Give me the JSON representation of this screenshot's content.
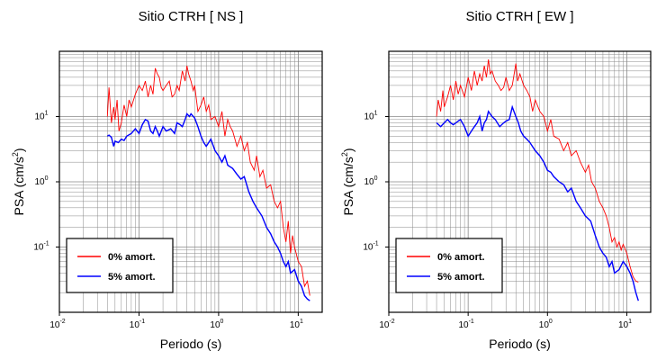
{
  "chart_data": [
    {
      "type": "line",
      "title": "Sitio CTRH [ NS ]",
      "xlabel": "Periodo (s)",
      "ylabel_main": "PSA (cm/s",
      "ylabel_sup": "2",
      "ylabel_tail": ")",
      "x_scale": "log",
      "y_scale": "log",
      "xlim": [
        0.01,
        20
      ],
      "ylim": [
        0.01,
        100
      ],
      "grid": true,
      "legend_position": "bottom-left",
      "x_ticks": [
        {
          "base": "10",
          "exp": "-2",
          "v": 0.01
        },
        {
          "base": "10",
          "exp": "-1",
          "v": 0.1
        },
        {
          "base": "10",
          "exp": "0",
          "v": 1
        },
        {
          "base": "10",
          "exp": "1",
          "v": 10
        }
      ],
      "y_ticks": [
        {
          "base": "10",
          "exp": "-1",
          "v": 0.1
        },
        {
          "base": "10",
          "exp": "0",
          "v": 1
        },
        {
          "base": "10",
          "exp": "1",
          "v": 10
        }
      ],
      "series": [
        {
          "name": "0% amort.",
          "color": "#ff0000",
          "x": [
            0.04,
            0.042,
            0.045,
            0.048,
            0.05,
            0.053,
            0.056,
            0.06,
            0.065,
            0.07,
            0.075,
            0.08,
            0.09,
            0.1,
            0.11,
            0.12,
            0.13,
            0.14,
            0.15,
            0.16,
            0.17,
            0.18,
            0.19,
            0.2,
            0.22,
            0.24,
            0.26,
            0.28,
            0.3,
            0.32,
            0.35,
            0.38,
            0.4,
            0.42,
            0.45,
            0.48,
            0.5,
            0.55,
            0.6,
            0.65,
            0.7,
            0.75,
            0.8,
            0.9,
            1.0,
            1.1,
            1.2,
            1.3,
            1.4,
            1.5,
            1.7,
            1.9,
            2.1,
            2.3,
            2.5,
            2.8,
            3.0,
            3.3,
            3.6,
            4.0,
            4.5,
            5.0,
            5.5,
            6.0,
            6.5,
            7.0,
            7.5,
            8.0,
            8.5,
            9.0,
            10.0,
            11.0,
            12.0,
            13.0,
            14.0
          ],
          "y": [
            10,
            28,
            8,
            14,
            9,
            18,
            6,
            8,
            15,
            10,
            18,
            14,
            22,
            30,
            25,
            35,
            20,
            30,
            22,
            55,
            45,
            40,
            28,
            25,
            30,
            35,
            20,
            22,
            30,
            25,
            50,
            35,
            60,
            45,
            35,
            25,
            30,
            12,
            15,
            20,
            12,
            15,
            9,
            10,
            7,
            12,
            5,
            9,
            7,
            6,
            3.5,
            5,
            3,
            4,
            2,
            1.5,
            2.5,
            1.2,
            1.5,
            0.8,
            0.9,
            0.5,
            0.4,
            0.5,
            0.2,
            0.12,
            0.25,
            0.08,
            0.15,
            0.1,
            0.06,
            0.05,
            0.025,
            0.03,
            0.018
          ]
        },
        {
          "name": "5% amort.",
          "color": "#0000ff",
          "x": [
            0.04,
            0.042,
            0.045,
            0.048,
            0.05,
            0.055,
            0.06,
            0.065,
            0.07,
            0.08,
            0.09,
            0.1,
            0.11,
            0.12,
            0.13,
            0.14,
            0.15,
            0.16,
            0.17,
            0.18,
            0.2,
            0.22,
            0.25,
            0.28,
            0.3,
            0.33,
            0.35,
            0.38,
            0.4,
            0.43,
            0.45,
            0.5,
            0.55,
            0.6,
            0.65,
            0.7,
            0.8,
            0.9,
            1.0,
            1.1,
            1.2,
            1.3,
            1.5,
            1.7,
            1.9,
            2.1,
            2.4,
            2.7,
            3.0,
            3.5,
            4.0,
            4.5,
            5.0,
            5.5,
            6.0,
            6.5,
            7.0,
            7.5,
            8.0,
            9.0,
            10.0,
            11.0,
            12.0,
            13.0,
            14.0
          ],
          "y": [
            5,
            5.2,
            4.8,
            3.5,
            4.2,
            4,
            4.5,
            4.3,
            5,
            5.5,
            6.5,
            5.5,
            7.5,
            9,
            8.5,
            6,
            5.5,
            7,
            6,
            5,
            7,
            6,
            6.5,
            5.5,
            8,
            7.5,
            7,
            9,
            11,
            10,
            11,
            9.5,
            7,
            5,
            4,
            3.5,
            4.5,
            3,
            2.5,
            2,
            2.5,
            1.8,
            1.6,
            1.3,
            1.1,
            1.2,
            0.7,
            0.5,
            0.4,
            0.3,
            0.2,
            0.16,
            0.12,
            0.1,
            0.08,
            0.06,
            0.05,
            0.06,
            0.04,
            0.045,
            0.03,
            0.025,
            0.018,
            0.016,
            0.015
          ]
        }
      ]
    },
    {
      "type": "line",
      "title": "Sitio CTRH [ EW ]",
      "xlabel": "Periodo (s)",
      "ylabel_main": "PSA (cm/s",
      "ylabel_sup": "2",
      "ylabel_tail": ")",
      "x_scale": "log",
      "y_scale": "log",
      "xlim": [
        0.01,
        20
      ],
      "ylim": [
        0.01,
        100
      ],
      "grid": true,
      "legend_position": "bottom-left",
      "x_ticks": [
        {
          "base": "10",
          "exp": "-2",
          "v": 0.01
        },
        {
          "base": "10",
          "exp": "-1",
          "v": 0.1
        },
        {
          "base": "10",
          "exp": "0",
          "v": 1
        },
        {
          "base": "10",
          "exp": "1",
          "v": 10
        }
      ],
      "y_ticks": [
        {
          "base": "10",
          "exp": "-1",
          "v": 0.1
        },
        {
          "base": "10",
          "exp": "0",
          "v": 1
        },
        {
          "base": "10",
          "exp": "1",
          "v": 10
        }
      ],
      "series": [
        {
          "name": "0% amort.",
          "color": "#ff0000",
          "x": [
            0.04,
            0.042,
            0.045,
            0.048,
            0.05,
            0.055,
            0.06,
            0.065,
            0.07,
            0.075,
            0.08,
            0.09,
            0.1,
            0.11,
            0.12,
            0.13,
            0.14,
            0.15,
            0.16,
            0.17,
            0.18,
            0.19,
            0.2,
            0.22,
            0.24,
            0.26,
            0.28,
            0.3,
            0.33,
            0.36,
            0.4,
            0.42,
            0.45,
            0.5,
            0.55,
            0.6,
            0.65,
            0.7,
            0.8,
            0.9,
            1.0,
            1.1,
            1.2,
            1.4,
            1.6,
            1.8,
            2.0,
            2.3,
            2.6,
            3.0,
            3.3,
            3.6,
            4.0,
            4.5,
            5.0,
            5.5,
            6.0,
            6.5,
            7.0,
            7.5,
            8.0,
            8.5,
            9.0,
            10.0,
            11.0,
            12.0,
            13.0,
            14.0
          ],
          "y": [
            10,
            18,
            12,
            25,
            14,
            20,
            30,
            18,
            35,
            22,
            30,
            20,
            40,
            25,
            50,
            30,
            45,
            35,
            60,
            40,
            75,
            45,
            50,
            35,
            30,
            25,
            28,
            40,
            25,
            30,
            65,
            35,
            45,
            30,
            25,
            20,
            12,
            18,
            12,
            10,
            6,
            9,
            5,
            4.5,
            3,
            4,
            2.5,
            3,
            2,
            1.4,
            1.8,
            1,
            0.8,
            0.5,
            0.4,
            0.3,
            0.2,
            0.12,
            0.14,
            0.1,
            0.12,
            0.09,
            0.11,
            0.08,
            0.05,
            0.035,
            0.03,
            0.029
          ]
        },
        {
          "name": "5% amort.",
          "color": "#0000ff",
          "x": [
            0.04,
            0.045,
            0.05,
            0.055,
            0.06,
            0.065,
            0.07,
            0.08,
            0.09,
            0.1,
            0.11,
            0.12,
            0.13,
            0.14,
            0.15,
            0.16,
            0.17,
            0.18,
            0.2,
            0.22,
            0.25,
            0.28,
            0.3,
            0.33,
            0.36,
            0.4,
            0.43,
            0.46,
            0.5,
            0.55,
            0.6,
            0.7,
            0.8,
            0.9,
            1.0,
            1.1,
            1.2,
            1.4,
            1.6,
            1.8,
            2.0,
            2.3,
            2.6,
            3.0,
            3.5,
            4.0,
            4.5,
            5.0,
            5.5,
            6.0,
            6.5,
            7.0,
            8.0,
            9.0,
            10.0,
            11.0,
            12.0,
            13.0,
            14.0
          ],
          "y": [
            8,
            7,
            8,
            9,
            8,
            7.5,
            8,
            9,
            7,
            5,
            6,
            7,
            8,
            10,
            6,
            8,
            9,
            12,
            10,
            9,
            7,
            8,
            8.5,
            9,
            14,
            10,
            8,
            6,
            5,
            4.5,
            4,
            3,
            2.5,
            2,
            1.5,
            1.4,
            1.2,
            1.0,
            0.9,
            0.7,
            0.8,
            0.5,
            0.4,
            0.3,
            0.25,
            0.15,
            0.1,
            0.08,
            0.07,
            0.05,
            0.06,
            0.04,
            0.045,
            0.06,
            0.05,
            0.04,
            0.03,
            0.02,
            0.015
          ]
        }
      ]
    }
  ]
}
